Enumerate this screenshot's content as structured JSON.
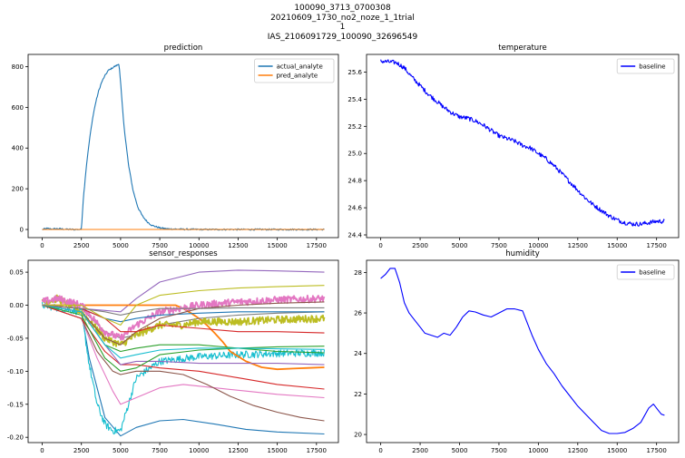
{
  "suptitle": [
    "100090_3713_0700308",
    "20210609_1730_no2_noze_1_1trial",
    "1",
    "IAS_2106091729_100090_32696549"
  ],
  "chart_data": [
    {
      "id": "prediction",
      "type": "line",
      "title": "prediction",
      "xlim": [
        -900,
        18900
      ],
      "ylim": [
        -40,
        860
      ],
      "xticks": [
        0,
        2500,
        5000,
        7500,
        10000,
        12500,
        15000,
        17500
      ],
      "yticks": [
        0,
        200,
        400,
        600,
        800
      ],
      "legend": "top-right",
      "series": [
        {
          "name": "actual_analyte",
          "color": "#1f77b4",
          "noisy": true,
          "x": [
            0,
            300,
            600,
            1000,
            1500,
            2000,
            2500,
            2600,
            2800,
            3000,
            3200,
            3400,
            3600,
            3800,
            4000,
            4200,
            4400,
            4600,
            4800,
            4900,
            5000,
            5200,
            5500,
            5800,
            6100,
            6400,
            6700,
            7000,
            7500,
            8000,
            9000,
            10000,
            11000,
            12000,
            13000,
            14000,
            15000,
            16000,
            17000,
            18000
          ],
          "y": [
            0,
            5,
            2,
            4,
            1,
            0,
            0,
            130,
            300,
            430,
            540,
            620,
            680,
            725,
            755,
            780,
            790,
            800,
            808,
            815,
            720,
            520,
            320,
            190,
            110,
            65,
            38,
            20,
            8,
            3,
            1,
            0,
            0,
            0,
            0,
            0,
            0,
            0,
            0,
            0
          ]
        },
        {
          "name": "pred_analyte",
          "color": "#ff7f0e",
          "noisy": false,
          "x": [
            0,
            18000
          ],
          "y": [
            0,
            0
          ]
        }
      ]
    },
    {
      "id": "temperature",
      "type": "line",
      "title": "temperature",
      "xlim": [
        -900,
        18900
      ],
      "ylim": [
        24.38,
        25.73
      ],
      "xticks": [
        0,
        2500,
        5000,
        7500,
        10000,
        12500,
        15000,
        17500
      ],
      "yticks": [
        24.4,
        24.6,
        24.8,
        25.0,
        25.2,
        25.4,
        25.6
      ],
      "legend": "top-right",
      "series": [
        {
          "name": "baseline",
          "color": "#0000ff",
          "noisy": true,
          "x": [
            0,
            1000,
            1500,
            2000,
            2500,
            3000,
            3500,
            4000,
            4500,
            5000,
            5500,
            6000,
            6500,
            7000,
            7500,
            8000,
            8500,
            9000,
            9500,
            10000,
            10500,
            11000,
            11500,
            12000,
            12500,
            13000,
            13500,
            14000,
            14500,
            15000,
            15500,
            16000,
            16500,
            17000,
            17500,
            18000
          ],
          "y": [
            25.68,
            25.67,
            25.63,
            25.56,
            25.5,
            25.44,
            25.39,
            25.34,
            25.3,
            25.27,
            25.26,
            25.24,
            25.21,
            25.17,
            25.13,
            25.11,
            25.09,
            25.06,
            25.04,
            25.0,
            24.96,
            24.91,
            24.85,
            24.79,
            24.73,
            24.67,
            24.62,
            24.58,
            24.54,
            24.51,
            24.49,
            24.48,
            24.48,
            24.49,
            24.5,
            24.5
          ]
        }
      ]
    },
    {
      "id": "sensor_responses",
      "type": "line",
      "title": "sensor_responses",
      "xlim": [
        -900,
        18900
      ],
      "ylim": [
        -0.208,
        0.068
      ],
      "xticks": [
        0,
        2500,
        5000,
        7500,
        10000,
        12500,
        15000,
        17500
      ],
      "yticks": [
        -0.2,
        -0.15,
        -0.1,
        -0.05,
        0.0,
        0.05
      ],
      "legend": "none",
      "series": [
        {
          "color": "#9467bd",
          "noisy": false,
          "x": [
            0,
            2500,
            4000,
            5000,
            6000,
            7500,
            10000,
            12500,
            15000,
            18000
          ],
          "y": [
            0,
            -0.005,
            -0.008,
            -0.01,
            0.01,
            0.035,
            0.05,
            0.053,
            0.052,
            0.05
          ]
        },
        {
          "color": "#1f77b4",
          "noisy": false,
          "x": [
            0,
            2500,
            3000,
            4000,
            5000,
            6000,
            7500,
            9000,
            11000,
            13000,
            15000,
            18000
          ],
          "y": [
            0,
            -0.01,
            -0.08,
            -0.17,
            -0.198,
            -0.185,
            -0.175,
            -0.173,
            -0.18,
            -0.188,
            -0.192,
            -0.195
          ]
        },
        {
          "color": "#17becf",
          "noisy": true,
          "x": [
            0,
            2500,
            3000,
            3500,
            4000,
            4500,
            5000,
            5500,
            6000,
            7500,
            10000,
            12500,
            15000,
            18000
          ],
          "y": [
            0,
            -0.01,
            -0.09,
            -0.15,
            -0.18,
            -0.19,
            -0.19,
            -0.15,
            -0.11,
            -0.085,
            -0.078,
            -0.075,
            -0.073,
            -0.072
          ]
        },
        {
          "color": "#e377c2",
          "noisy": false,
          "x": [
            0,
            2500,
            3500,
            4500,
            5000,
            6000,
            7500,
            9000,
            11000,
            13000,
            15000,
            18000
          ],
          "y": [
            0,
            -0.02,
            -0.08,
            -0.13,
            -0.15,
            -0.14,
            -0.125,
            -0.12,
            -0.125,
            -0.13,
            -0.135,
            -0.14
          ]
        },
        {
          "color": "#8c564b",
          "noisy": false,
          "x": [
            0,
            2500,
            3500,
            4500,
            5000,
            6000,
            7500,
            9000,
            10500,
            12000,
            13500,
            15000,
            16500,
            18000
          ],
          "y": [
            0,
            -0.02,
            -0.07,
            -0.1,
            -0.105,
            -0.1,
            -0.1,
            -0.105,
            -0.12,
            -0.138,
            -0.152,
            -0.162,
            -0.17,
            -0.175
          ]
        },
        {
          "color": "#d62728",
          "noisy": false,
          "x": [
            0,
            2500,
            4000,
            5000,
            6000,
            7500,
            10000,
            12500,
            15000,
            18000
          ],
          "y": [
            0,
            -0.02,
            -0.07,
            -0.09,
            -0.09,
            -0.095,
            -0.1,
            -0.11,
            -0.12,
            -0.127
          ]
        },
        {
          "color": "#ff7f0e",
          "noisy": false,
          "thick": true,
          "x": [
            0,
            2500,
            5000,
            7500,
            8500,
            9000,
            9500,
            10000,
            10500,
            11000,
            11500,
            12000,
            13000,
            14000,
            15000,
            16000,
            17000,
            18000
          ],
          "y": [
            0,
            0,
            0,
            0,
            0,
            -0.005,
            -0.012,
            -0.02,
            -0.03,
            -0.042,
            -0.055,
            -0.07,
            -0.085,
            -0.094,
            -0.097,
            -0.096,
            -0.095,
            -0.094
          ]
        },
        {
          "color": "#2ca02c",
          "noisy": false,
          "x": [
            0,
            2500,
            4000,
            5000,
            6000,
            7500,
            10000,
            12500,
            15000,
            18000
          ],
          "y": [
            0,
            -0.01,
            -0.06,
            -0.07,
            -0.065,
            -0.06,
            -0.06,
            -0.065,
            -0.07,
            -0.072
          ]
        },
        {
          "color": "#7f7f7f",
          "noisy": false,
          "x": [
            0,
            2500,
            4000,
            5000,
            6000,
            7500,
            10000,
            12500,
            15000,
            18000
          ],
          "y": [
            0,
            -0.005,
            -0.04,
            -0.05,
            -0.045,
            -0.03,
            -0.02,
            -0.015,
            -0.012,
            -0.01
          ]
        },
        {
          "color": "#bcbd22",
          "noisy": true,
          "thick": true,
          "x": [
            0,
            1000,
            2500,
            4000,
            5000,
            6000,
            7500,
            9000,
            10000,
            12500,
            15000,
            18000
          ],
          "y": [
            0.005,
            0.01,
            -0.01,
            -0.05,
            -0.06,
            -0.045,
            -0.03,
            -0.03,
            -0.025,
            -0.025,
            -0.022,
            -0.02
          ]
        },
        {
          "color": "#e377c2",
          "noisy": true,
          "thick": true,
          "x": [
            0,
            1000,
            2500,
            4000,
            5000,
            6000,
            7500,
            10000,
            12500,
            15000,
            18000
          ],
          "y": [
            0.005,
            0.01,
            0.0,
            -0.04,
            -0.05,
            -0.03,
            -0.01,
            0.0,
            0.005,
            0.008,
            0.01
          ]
        },
        {
          "color": "#1f77b4",
          "noisy": false,
          "x": [
            0,
            2500,
            4000,
            5000,
            6000,
            7500,
            10000,
            12500,
            15000,
            18000
          ],
          "y": [
            0,
            -0.005,
            -0.02,
            -0.025,
            -0.02,
            -0.015,
            -0.012,
            -0.01,
            -0.01,
            -0.01
          ]
        },
        {
          "color": "#8c564b",
          "noisy": false,
          "x": [
            0,
            2500,
            4000,
            5000,
            6000,
            7500,
            10000,
            12500,
            15000,
            18000
          ],
          "y": [
            0,
            -0.01,
            -0.05,
            -0.06,
            -0.04,
            -0.02,
            -0.005,
            0.0,
            0.003,
            0.005
          ]
        },
        {
          "color": "#9467bd",
          "noisy": false,
          "x": [
            0,
            2500,
            4000,
            5000,
            6000,
            7500,
            10000,
            12500,
            15000,
            18000
          ],
          "y": [
            0,
            -0.01,
            -0.06,
            -0.09,
            -0.085,
            -0.085,
            -0.088,
            -0.088,
            -0.088,
            -0.09
          ]
        },
        {
          "color": "#2ca02c",
          "noisy": false,
          "x": [
            0,
            2500,
            4000,
            5000,
            6000,
            7500,
            10000,
            12500,
            15000,
            18000
          ],
          "y": [
            0,
            -0.015,
            -0.08,
            -0.1,
            -0.095,
            -0.075,
            -0.068,
            -0.065,
            -0.063,
            -0.062
          ]
        },
        {
          "color": "#d62728",
          "noisy": false,
          "x": [
            0,
            2500,
            4000,
            5000,
            6000,
            7500,
            10000,
            12500,
            15000,
            18000
          ],
          "y": [
            0,
            -0.005,
            -0.02,
            -0.04,
            -0.04,
            -0.03,
            -0.035,
            -0.04,
            -0.04,
            -0.042
          ]
        },
        {
          "color": "#bcbd22",
          "noisy": false,
          "x": [
            0,
            2500,
            4000,
            5000,
            6000,
            7500,
            10000,
            12500,
            15000,
            18000
          ],
          "y": [
            0,
            0,
            -0.02,
            -0.03,
            0.0,
            0.015,
            0.022,
            0.026,
            0.028,
            0.03
          ]
        },
        {
          "color": "#17becf",
          "noisy": false,
          "x": [
            0,
            2500,
            4000,
            5000,
            6000,
            7500,
            10000,
            12500,
            15000,
            18000
          ],
          "y": [
            0,
            -0.01,
            -0.06,
            -0.08,
            -0.075,
            -0.068,
            -0.065,
            -0.065,
            -0.066,
            -0.067
          ]
        },
        {
          "color": "#7f7f7f",
          "noisy": false,
          "x": [
            0,
            2500,
            4000,
            5000,
            6000,
            7500,
            10000,
            12500,
            15000,
            18000
          ],
          "y": [
            0,
            -0.005,
            -0.01,
            -0.015,
            -0.01,
            -0.005,
            -0.005,
            -0.004,
            -0.004,
            -0.004
          ]
        }
      ]
    },
    {
      "id": "humidity",
      "type": "line",
      "title": "humidity",
      "xlim": [
        -900,
        18900
      ],
      "ylim": [
        19.6,
        28.6
      ],
      "xticks": [
        0,
        2500,
        5000,
        7500,
        10000,
        12500,
        15000,
        17500
      ],
      "yticks": [
        20,
        22,
        24,
        26,
        28
      ],
      "legend": "top-right",
      "series": [
        {
          "name": "baseline",
          "color": "#0000ff",
          "noisy": false,
          "x": [
            0,
            300,
            600,
            900,
            1200,
            1500,
            1800,
            2100,
            2500,
            2800,
            3200,
            3600,
            4000,
            4400,
            4800,
            5200,
            5600,
            6000,
            6500,
            7000,
            7500,
            8000,
            8500,
            9000,
            9300,
            9600,
            10000,
            10500,
            11000,
            11500,
            12000,
            12500,
            13000,
            13500,
            14000,
            14500,
            15000,
            15500,
            16000,
            16500,
            17000,
            17300,
            17600,
            17800,
            18000
          ],
          "y": [
            27.7,
            27.9,
            28.2,
            28.2,
            27.5,
            26.5,
            26.0,
            25.7,
            25.3,
            25.0,
            24.9,
            24.8,
            25.0,
            24.9,
            25.3,
            25.8,
            26.1,
            26.05,
            25.9,
            25.8,
            26.0,
            26.2,
            26.2,
            26.1,
            25.5,
            24.9,
            24.2,
            23.5,
            23.0,
            22.4,
            21.9,
            21.4,
            21.0,
            20.6,
            20.2,
            20.05,
            20.05,
            20.1,
            20.3,
            20.6,
            21.3,
            21.5,
            21.2,
            21.0,
            20.95
          ]
        }
      ]
    }
  ]
}
